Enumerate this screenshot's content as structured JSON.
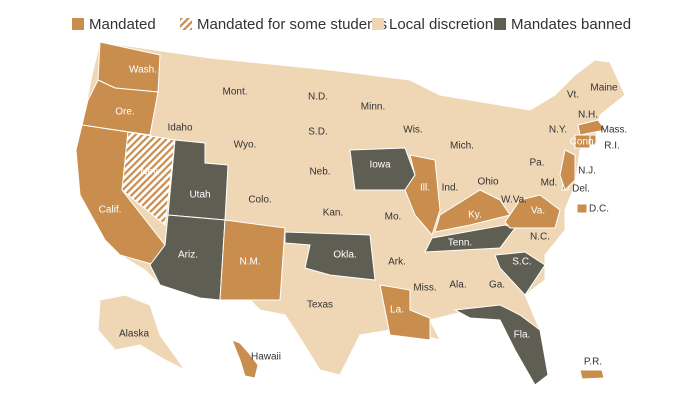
{
  "legend": [
    {
      "label": "Mandated",
      "color": "#c98d4d"
    },
    {
      "label": "Mandated for some students",
      "color": "#c98d4d",
      "pattern": "hatch"
    },
    {
      "label": "Local discretion",
      "color": "#efd7b6"
    },
    {
      "label": "Mandates banned",
      "color": "#5e5e52"
    }
  ],
  "states": [
    {
      "label": "Wash.",
      "category": "Mandated"
    },
    {
      "label": "Ore.",
      "category": "Mandated"
    },
    {
      "label": "Calif.",
      "category": "Mandated"
    },
    {
      "label": "Nev.",
      "category": "Mandated for some students"
    },
    {
      "label": "Idaho",
      "category": "Local discretion"
    },
    {
      "label": "Mont.",
      "category": "Local discretion"
    },
    {
      "label": "Wyo.",
      "category": "Local discretion"
    },
    {
      "label": "Utah",
      "category": "Mandates banned"
    },
    {
      "label": "Ariz.",
      "category": "Mandates banned"
    },
    {
      "label": "Colo.",
      "category": "Local discretion"
    },
    {
      "label": "N.M.",
      "category": "Mandated"
    },
    {
      "label": "N.D.",
      "category": "Local discretion"
    },
    {
      "label": "S.D.",
      "category": "Local discretion"
    },
    {
      "label": "Neb.",
      "category": "Local discretion"
    },
    {
      "label": "Kan.",
      "category": "Local discretion"
    },
    {
      "label": "Okla.",
      "category": "Mandates banned"
    },
    {
      "label": "Texas",
      "category": "Local discretion"
    },
    {
      "label": "Minn.",
      "category": "Local discretion"
    },
    {
      "label": "Iowa",
      "category": "Mandates banned"
    },
    {
      "label": "Mo.",
      "category": "Local discretion"
    },
    {
      "label": "Ark.",
      "category": "Local discretion"
    },
    {
      "label": "La.",
      "category": "Mandated"
    },
    {
      "label": "Wis.",
      "category": "Local discretion"
    },
    {
      "label": "Ill.",
      "category": "Mandated"
    },
    {
      "label": "Mich.",
      "category": "Local discretion"
    },
    {
      "label": "Ind.",
      "category": "Local discretion"
    },
    {
      "label": "Ohio",
      "category": "Local discretion"
    },
    {
      "label": "Ky.",
      "category": "Mandated"
    },
    {
      "label": "Tenn.",
      "category": "Mandates banned"
    },
    {
      "label": "Miss.",
      "category": "Local discretion"
    },
    {
      "label": "Ala.",
      "category": "Local discretion"
    },
    {
      "label": "Ga.",
      "category": "Local discretion"
    },
    {
      "label": "Fla.",
      "category": "Mandates banned"
    },
    {
      "label": "S.C.",
      "category": "Mandates banned"
    },
    {
      "label": "N.C.",
      "category": "Local discretion"
    },
    {
      "label": "Va.",
      "category": "Mandated"
    },
    {
      "label": "W.Va.",
      "category": "Local discretion"
    },
    {
      "label": "Md.",
      "category": "Local discretion"
    },
    {
      "label": "Del.",
      "category": "Mandated"
    },
    {
      "label": "Pa.",
      "category": "Local discretion"
    },
    {
      "label": "N.J.",
      "category": "Mandated"
    },
    {
      "label": "N.Y.",
      "category": "Local discretion"
    },
    {
      "label": "Conn.",
      "category": "Mandated"
    },
    {
      "label": "R.I.",
      "category": "Mandated"
    },
    {
      "label": "Mass.",
      "category": "Mandated"
    },
    {
      "label": "Vt.",
      "category": "Local discretion"
    },
    {
      "label": "N.H.",
      "category": "Local discretion"
    },
    {
      "label": "Maine",
      "category": "Local discretion"
    },
    {
      "label": "D.C.",
      "category": "Mandated"
    },
    {
      "label": "Alaska",
      "category": "Local discretion"
    },
    {
      "label": "Hawaii",
      "category": "Mandated"
    },
    {
      "label": "P.R.",
      "category": "Mandated"
    }
  ]
}
